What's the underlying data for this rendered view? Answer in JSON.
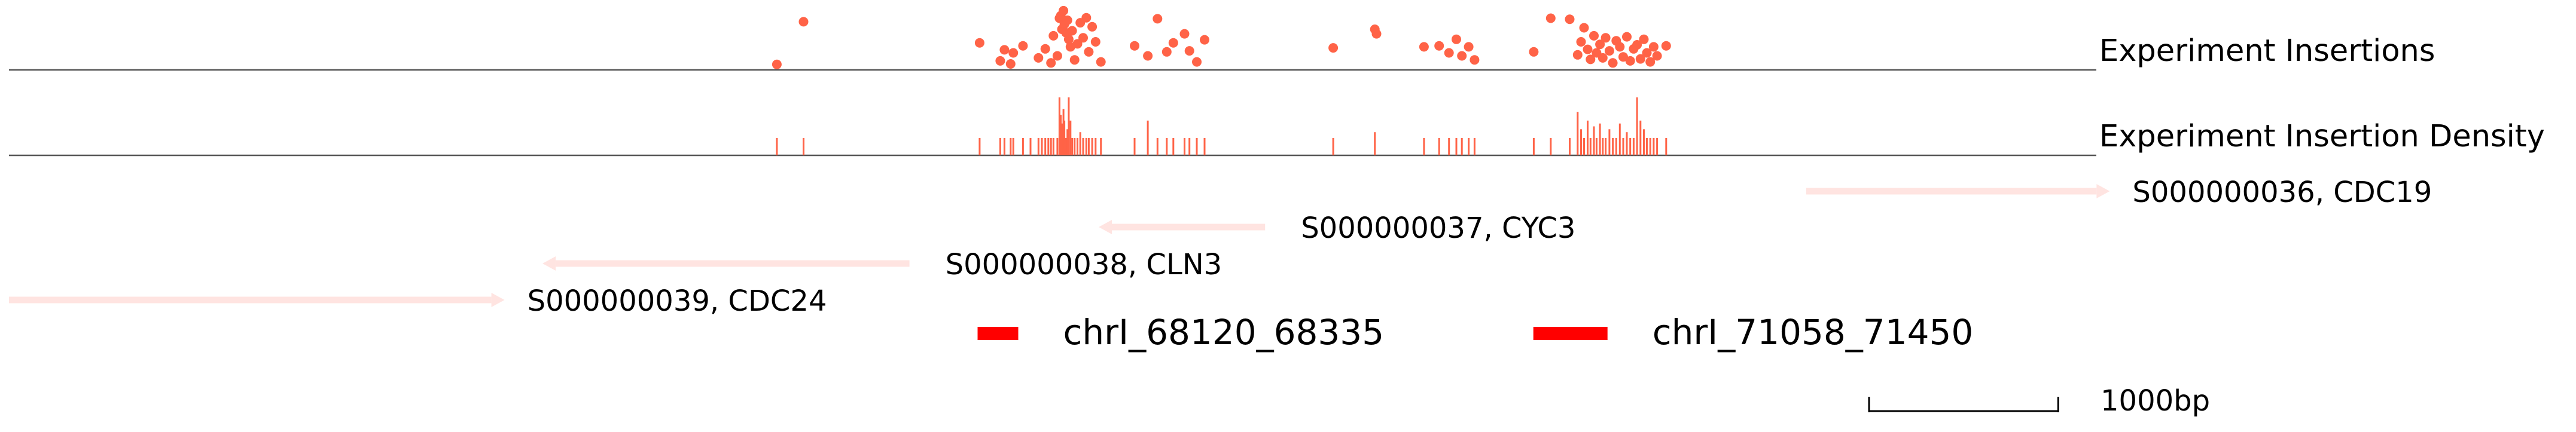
{
  "genome_view": {
    "region_start_bp": 63000,
    "region_end_bp": 74000,
    "colors": {
      "insertion": "#FF6347",
      "gene": "#FFE4E1",
      "feature": "#FF0000",
      "axis": "#555555",
      "text": "#000000"
    }
  },
  "tracks": [
    {
      "id": "insertions",
      "label": "Experiment Insertions",
      "type": "scatter",
      "points": [
        [
          67059,
          0.05
        ],
        [
          67200,
          0.9
        ],
        [
          68131,
          0.48
        ],
        [
          68240,
          0.12
        ],
        [
          68262,
          0.34
        ],
        [
          68295,
          0.06
        ],
        [
          68309,
          0.28
        ],
        [
          68360,
          0.42
        ],
        [
          68442,
          0.18
        ],
        [
          68478,
          0.36
        ],
        [
          68508,
          0.08
        ],
        [
          68521,
          0.62
        ],
        [
          68542,
          0.22
        ],
        [
          68553,
          0.97
        ],
        [
          68560,
          1.02
        ],
        [
          68566,
          0.75
        ],
        [
          68574,
          1.12
        ],
        [
          68579,
          0.85
        ],
        [
          68588,
          0.68
        ],
        [
          68595,
          0.93
        ],
        [
          68602,
          0.55
        ],
        [
          68611,
          0.4
        ],
        [
          68620,
          0.72
        ],
        [
          68633,
          0.14
        ],
        [
          68648,
          0.46
        ],
        [
          68663,
          0.88
        ],
        [
          68678,
          0.58
        ],
        [
          68695,
          0.98
        ],
        [
          68708,
          0.3
        ],
        [
          68726,
          0.8
        ],
        [
          68744,
          0.5
        ],
        [
          68772,
          0.1
        ],
        [
          68950,
          0.42
        ],
        [
          69020,
          0.22
        ],
        [
          69071,
          0.96
        ],
        [
          69120,
          0.3
        ],
        [
          69155,
          0.48
        ],
        [
          69214,
          0.66
        ],
        [
          69240,
          0.32
        ],
        [
          69279,
          0.1
        ],
        [
          69320,
          0.54
        ],
        [
          70000,
          0.38
        ],
        [
          70220,
          0.75
        ],
        [
          70229,
          0.66
        ],
        [
          70480,
          0.4
        ],
        [
          70560,
          0.42
        ],
        [
          70612,
          0.28
        ],
        [
          70651,
          0.55
        ],
        [
          70680,
          0.22
        ],
        [
          70716,
          0.4
        ],
        [
          70747,
          0.14
        ],
        [
          71060,
          0.3
        ],
        [
          71150,
          0.97
        ],
        [
          71250,
          0.95
        ],
        [
          71292,
          0.24
        ],
        [
          71310,
          0.5
        ],
        [
          71326,
          0.78
        ],
        [
          71345,
          0.35
        ],
        [
          71360,
          0.15
        ],
        [
          71378,
          0.62
        ],
        [
          71392,
          0.28
        ],
        [
          71410,
          0.45
        ],
        [
          71425,
          0.18
        ],
        [
          71440,
          0.58
        ],
        [
          71460,
          0.32
        ],
        [
          71478,
          0.08
        ],
        [
          71496,
          0.52
        ],
        [
          71515,
          0.4
        ],
        [
          71533,
          0.2
        ],
        [
          71552,
          0.6
        ],
        [
          71570,
          0.12
        ],
        [
          71588,
          0.36
        ],
        [
          71606,
          0.44
        ],
        [
          71624,
          0.16
        ],
        [
          71642,
          0.55
        ],
        [
          71658,
          0.28
        ],
        [
          71676,
          0.1
        ],
        [
          71694,
          0.4
        ],
        [
          71712,
          0.22
        ],
        [
          71760,
          0.42
        ]
      ]
    },
    {
      "id": "density",
      "label": "Experiment Insertion Density",
      "type": "density",
      "ticks": [
        [
          67059,
          0.3
        ],
        [
          67200,
          0.3
        ],
        [
          68131,
          0.3
        ],
        [
          68240,
          0.3
        ],
        [
          68262,
          0.3
        ],
        [
          68295,
          0.3
        ],
        [
          68309,
          0.3
        ],
        [
          68360,
          0.3
        ],
        [
          68400,
          0.3
        ],
        [
          68442,
          0.3
        ],
        [
          68460,
          0.3
        ],
        [
          68478,
          0.3
        ],
        [
          68494,
          0.3
        ],
        [
          68508,
          0.3
        ],
        [
          68521,
          0.3
        ],
        [
          68542,
          0.3
        ],
        [
          68553,
          1.0
        ],
        [
          68560,
          0.7
        ],
        [
          68566,
          0.55
        ],
        [
          68574,
          0.8
        ],
        [
          68579,
          0.6
        ],
        [
          68588,
          0.3
        ],
        [
          68595,
          0.45
        ],
        [
          68602,
          1.0
        ],
        [
          68611,
          0.6
        ],
        [
          68620,
          0.3
        ],
        [
          68633,
          0.3
        ],
        [
          68648,
          0.3
        ],
        [
          68663,
          0.4
        ],
        [
          68678,
          0.3
        ],
        [
          68695,
          0.3
        ],
        [
          68708,
          0.3
        ],
        [
          68726,
          0.3
        ],
        [
          68744,
          0.3
        ],
        [
          68772,
          0.3
        ],
        [
          68950,
          0.3
        ],
        [
          69020,
          0.6
        ],
        [
          69071,
          0.3
        ],
        [
          69120,
          0.3
        ],
        [
          69155,
          0.3
        ],
        [
          69214,
          0.3
        ],
        [
          69240,
          0.3
        ],
        [
          69279,
          0.3
        ],
        [
          69320,
          0.3
        ],
        [
          70000,
          0.3
        ],
        [
          70220,
          0.4
        ],
        [
          70480,
          0.3
        ],
        [
          70560,
          0.3
        ],
        [
          70612,
          0.3
        ],
        [
          70651,
          0.3
        ],
        [
          70680,
          0.3
        ],
        [
          70716,
          0.3
        ],
        [
          70747,
          0.3
        ],
        [
          71060,
          0.3
        ],
        [
          71150,
          0.3
        ],
        [
          71250,
          0.3
        ],
        [
          71292,
          0.75
        ],
        [
          71310,
          0.45
        ],
        [
          71326,
          0.3
        ],
        [
          71345,
          0.6
        ],
        [
          71360,
          0.3
        ],
        [
          71378,
          0.5
        ],
        [
          71392,
          0.3
        ],
        [
          71410,
          0.55
        ],
        [
          71425,
          0.3
        ],
        [
          71440,
          0.3
        ],
        [
          71460,
          0.45
        ],
        [
          71478,
          0.3
        ],
        [
          71496,
          0.3
        ],
        [
          71515,
          0.55
        ],
        [
          71533,
          0.3
        ],
        [
          71552,
          0.4
        ],
        [
          71570,
          0.3
        ],
        [
          71588,
          0.3
        ],
        [
          71606,
          1.0
        ],
        [
          71624,
          0.6
        ],
        [
          71642,
          0.45
        ],
        [
          71658,
          0.3
        ],
        [
          71676,
          0.3
        ],
        [
          71694,
          0.3
        ],
        [
          71712,
          0.3
        ],
        [
          71760,
          0.3
        ]
      ]
    }
  ],
  "genes": [
    {
      "label": "S000000036, CDC19",
      "start": 72500,
      "end": 74035,
      "strand": "+",
      "row": 0
    },
    {
      "label": "S000000037, CYC3",
      "start": 68830,
      "end": 69640,
      "strand": "-",
      "row": 1
    },
    {
      "label": "S000000038, CLN3",
      "start": 65890,
      "end": 67760,
      "strand": "-",
      "row": 2
    },
    {
      "label": "S000000039, CDC24",
      "start": 63000,
      "end": 65550,
      "strand": "+",
      "row": 3
    }
  ],
  "features": [
    {
      "label": "chrI_68120_68335",
      "start": 68120,
      "end": 68335
    },
    {
      "label": "chrI_71058_71450",
      "start": 71058,
      "end": 71450
    }
  ],
  "scale_bar": {
    "label": "1000bp",
    "length_bp": 1000
  }
}
